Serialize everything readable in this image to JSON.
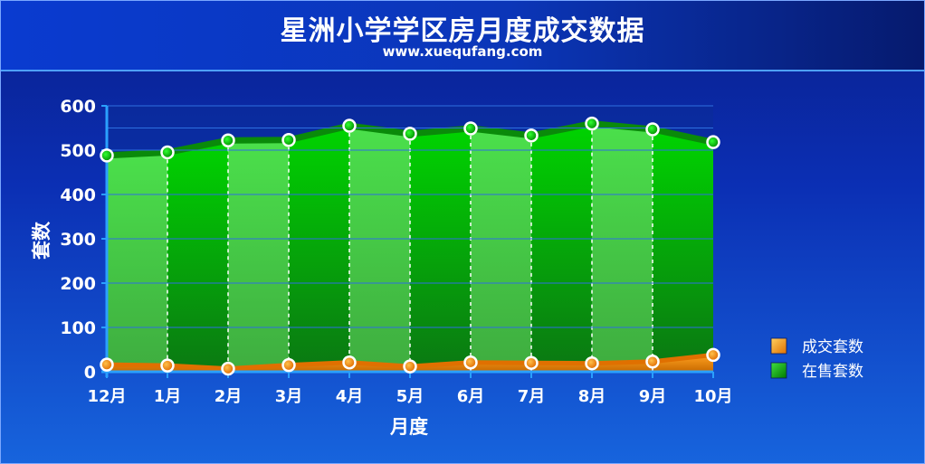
{
  "header": {
    "title": "星洲小学学区房月度成交数据",
    "subtitle": "www.xuequfang.com"
  },
  "colors": {
    "deal": "#ff8c00",
    "deal_light": "#ffb347",
    "listing": "#00cc00",
    "listing_dark": "#0a8f0a",
    "listing_light": "#46d846"
  },
  "chart_data": {
    "type": "area",
    "title": "星洲小学学区房月度成交数据",
    "xlabel": "月度",
    "ylabel": "套数",
    "categories": [
      "12月",
      "1月",
      "2月",
      "3月",
      "4月",
      "5月",
      "6月",
      "7月",
      "8月",
      "9月",
      "10月"
    ],
    "ylim": [
      0,
      600
    ],
    "yticks": [
      0,
      100,
      200,
      300,
      400,
      500,
      600
    ],
    "grid": true,
    "legend_position": "right",
    "series": [
      {
        "name": "成交套数",
        "values": [
          16,
          14,
          7,
          15,
          21,
          12,
          21,
          20,
          19,
          23,
          38
        ]
      },
      {
        "name": "在售套数",
        "values": [
          488,
          495,
          522,
          523,
          555,
          537,
          549,
          533,
          560,
          547,
          518
        ]
      }
    ]
  }
}
